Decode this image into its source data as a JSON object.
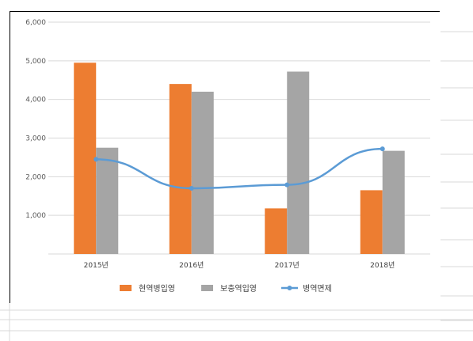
{
  "chart_data": {
    "type": "bar",
    "categories": [
      "2015년",
      "2016년",
      "2017년",
      "2018년"
    ],
    "series": [
      {
        "name": "현역병입영",
        "type": "bar",
        "color": "#ED7D31",
        "values": [
          4950,
          4400,
          1180,
          1650
        ]
      },
      {
        "name": "보충역입영",
        "type": "bar",
        "color": "#A5A5A5",
        "values": [
          2750,
          4200,
          4720,
          2670
        ]
      },
      {
        "name": "병역면제",
        "type": "line",
        "color": "#5B9BD5",
        "values": [
          2450,
          1700,
          1790,
          2720
        ]
      }
    ],
    "ylim": [
      0,
      6000
    ],
    "yticks": [
      "",
      "1,000",
      "2,000",
      "3,000",
      "4,000",
      "5,000",
      "6,000"
    ],
    "grid": true,
    "legend_position": "bottom"
  }
}
